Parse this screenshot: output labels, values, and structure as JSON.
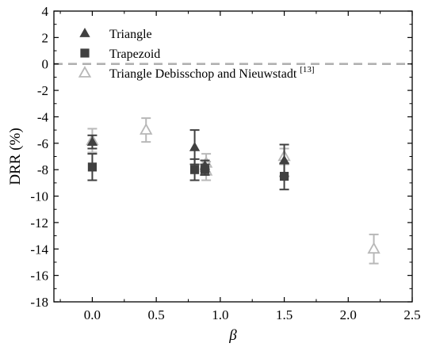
{
  "chart_data": {
    "type": "scatter",
    "xlabel": "β",
    "ylabel": "DRR (%)",
    "xlim": [
      -0.3,
      2.5
    ],
    "ylim": [
      -18,
      4
    ],
    "xticks": [
      0.0,
      0.5,
      1.0,
      1.5,
      2.0,
      2.5
    ],
    "xtick_labels": [
      "0.0",
      "0.5",
      "1.0",
      "1.5",
      "2.0",
      "2.5"
    ],
    "yticks": [
      4,
      2,
      0,
      -2,
      -4,
      -6,
      -8,
      -10,
      -12,
      -14,
      -16,
      -18
    ],
    "ytick_labels": [
      "4",
      "2",
      "0",
      "-2",
      "-4",
      "-6",
      "-8",
      "-10",
      "-12",
      "-14",
      "-16",
      "-18"
    ],
    "reference_line": {
      "y": 0,
      "style": "dashed",
      "color": "#b0b0b0"
    },
    "legend_placement": "top-left",
    "series": [
      {
        "name": "Triangle",
        "marker": "triangle-filled",
        "color": "#404040",
        "points": [
          {
            "x": 0.0,
            "y": -5.9,
            "err": 0.5
          },
          {
            "x": 0.8,
            "y": -6.3,
            "err": 1.3
          },
          {
            "x": 0.88,
            "y": -7.7,
            "err": 0.4
          },
          {
            "x": 1.5,
            "y": -7.3,
            "err": 1.2
          }
        ]
      },
      {
        "name": "Trapezoid",
        "marker": "square-filled",
        "color": "#404040",
        "points": [
          {
            "x": 0.0,
            "y": -7.8,
            "err": 1.0
          },
          {
            "x": 0.8,
            "y": -8.0,
            "err": 0.8
          },
          {
            "x": 0.88,
            "y": -8.0,
            "err": 0.4
          },
          {
            "x": 1.5,
            "y": -8.5,
            "err": 1.0
          }
        ]
      },
      {
        "name": "Triangle  Debisschop and Nieuwstadt",
        "name_superscript": "[13]",
        "marker": "triangle-open",
        "color": "#b8b8b8",
        "points": [
          {
            "x": 0.0,
            "y": -5.8,
            "err": 0.9
          },
          {
            "x": 0.42,
            "y": -5.0,
            "err": 0.9
          },
          {
            "x": 0.89,
            "y": -7.5,
            "err": 0.7
          },
          {
            "x": 0.89,
            "y": -8.1,
            "err": 0.7
          },
          {
            "x": 1.5,
            "y": -7.0,
            "err": 0.6
          },
          {
            "x": 2.2,
            "y": -14.0,
            "err": 1.1
          }
        ]
      }
    ]
  }
}
